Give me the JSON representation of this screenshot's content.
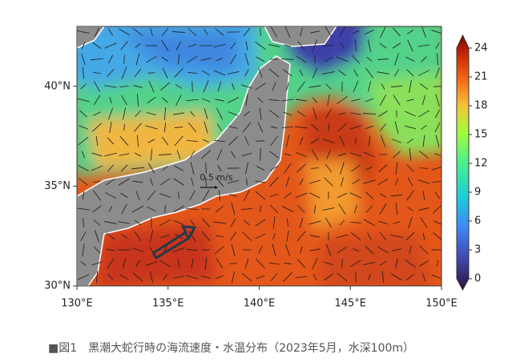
{
  "map": {
    "xlim": [
      130,
      150
    ],
    "ylim": [
      30,
      43
    ],
    "xticks": [
      {
        "value": 130,
        "label": "130°E"
      },
      {
        "value": 135,
        "label": "135°E"
      },
      {
        "value": 140,
        "label": "140°E"
      },
      {
        "value": 145,
        "label": "145°E"
      },
      {
        "value": 150,
        "label": "150°E"
      }
    ],
    "yticks": [
      {
        "value": 30,
        "label": "30°N"
      },
      {
        "value": 35,
        "label": "35°N"
      },
      {
        "value": 40,
        "label": "40°N"
      }
    ],
    "scale_label": "0.5 m/s"
  },
  "colorbar": {
    "lim": [
      0,
      24
    ],
    "ticks": [
      0,
      3,
      6,
      9,
      12,
      15,
      18,
      21,
      24
    ]
  },
  "caption": "■図1　黒潮大蛇行時の海流速度・水温分布（2023年5月，水深100m）"
}
